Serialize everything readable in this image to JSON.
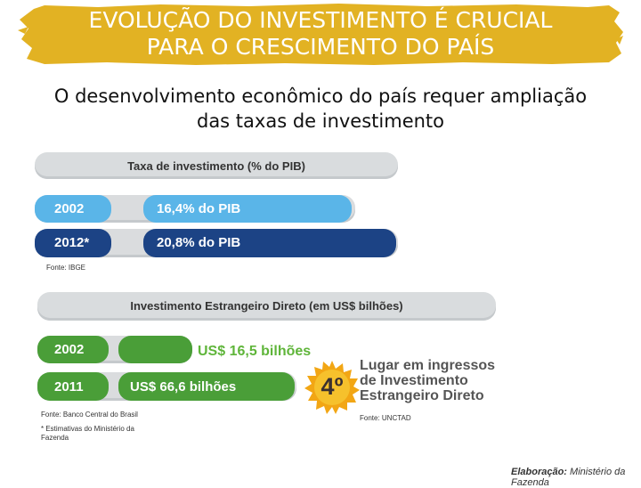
{
  "title": {
    "line1": "EVOLUÇÃO DO INVESTIMENTO É CRUCIAL",
    "line2": "PARA O CRESCIMENTO DO PAÍS"
  },
  "subtitle": {
    "line1": "O desenvolvimento econômico do país requer ampliação",
    "line2": "das taxas de investimento"
  },
  "investment_rate": {
    "header": "Taxa de investimento (% do PIB)",
    "rows": [
      {
        "year": "2002",
        "value": "16,4% do PIB"
      },
      {
        "year": "2012*",
        "value": "20,8% do PIB"
      }
    ],
    "source": "Fonte: IBGE"
  },
  "fdi": {
    "header": "Investimento Estrangeiro Direto (em US$ bilhões)",
    "rows": [
      {
        "year": "2002",
        "value": "US$ 16,5 bilhões"
      },
      {
        "year": "2011",
        "value": "US$ 66,6 bilhões"
      }
    ],
    "source": "Fonte: Banco Central do Brasil",
    "footnote_line1": "* Estimativas do Ministério da",
    "footnote_line2": "Fazenda"
  },
  "ranking": {
    "badge": "4º",
    "line1": "Lugar em ingressos",
    "line2": "de Investimento",
    "line3": "Estrangeiro Direto",
    "source": "Fonte: UNCTAD"
  },
  "credit": {
    "label": "Elaboração:",
    "value": "Ministério da Fazenda"
  },
  "colors": {
    "banner": "#e2b223",
    "light_blue": "#5ab5e8",
    "dark_blue": "#1c4385",
    "green": "#4a9e38",
    "badge": "#f2a614"
  }
}
